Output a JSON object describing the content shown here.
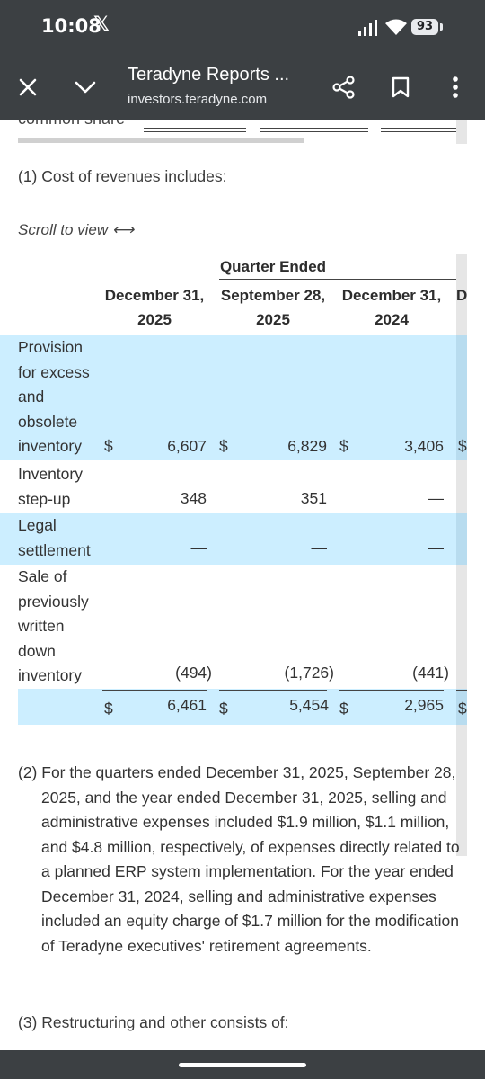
{
  "status_bar": {
    "time": "10:08",
    "app_glyph": "𝕏",
    "battery": "93"
  },
  "toolbar": {
    "title": "Teradyne Reports ...",
    "url": "investors.teradyne.com"
  },
  "content": {
    "cut_text": "common share",
    "note1": "(1) Cost of revenues includes:",
    "scroll_hint": "Scroll to view ⟷",
    "table": {
      "group_header": "Quarter Ended",
      "columns": [
        {
          "line1": "December 31,",
          "line2": "2025"
        },
        {
          "line1": "September 28,",
          "line2": "2025"
        },
        {
          "line1": "December 31,",
          "line2": "2024"
        },
        {
          "line1": "D",
          "line2": ""
        }
      ],
      "currency": "$",
      "rows": [
        {
          "label": "Provision for excess and obsolete inventory",
          "values": [
            "6,607",
            "6,829",
            "3,406"
          ]
        },
        {
          "label": "Inventory step-up",
          "values": [
            "348",
            "351",
            "—"
          ]
        },
        {
          "label": "Legal settlement",
          "values": [
            "—",
            "—",
            "—"
          ]
        },
        {
          "label": "Sale of previously written down inventory",
          "values": [
            "(494)",
            "(1,726)",
            "(441)"
          ]
        },
        {
          "label": "",
          "values": [
            "6,461",
            "5,454",
            "2,965"
          ]
        }
      ]
    },
    "note2": "(2) For the quarters ended December 31, 2025, September 28, 2025, and the year ended December 31, 2025, selling and administrative expenses included $1.9 million, $1.1 million, and $4.8 million, respectively, of expenses directly related to a planned ERP system implementation. For the year ended December 31, 2024, selling and administrative expenses included an equity charge of $1.7 million for the modification of Teradyne executives' retirement agreements.",
    "note3": "(3) Restructuring and other consists of:"
  }
}
